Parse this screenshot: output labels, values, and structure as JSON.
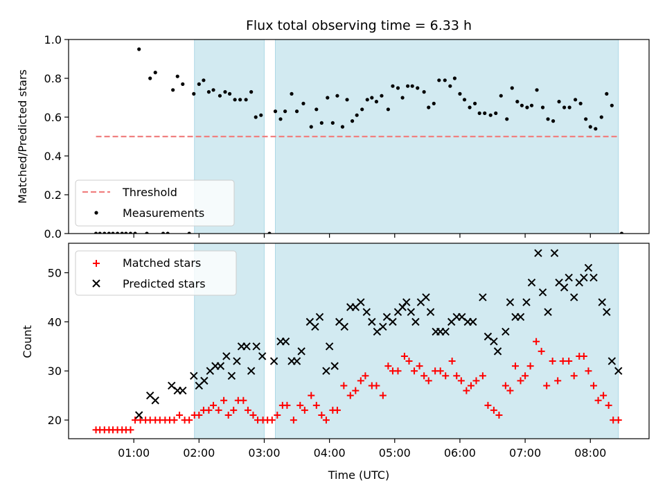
{
  "chart_data": {
    "title": "Flux total observing time = 6.33 h",
    "colors": {
      "band": "#add8e6",
      "threshold": "#f08080",
      "measurements": "#000000",
      "matched": "#ff0000",
      "predicted": "#000000"
    },
    "x_axis": {
      "label": "Time (UTC)",
      "unit": "hours UTC",
      "range": [
        0.0,
        8.9
      ],
      "ticks": [
        1,
        2,
        3,
        4,
        5,
        6,
        7,
        8
      ],
      "tick_labels": [
        "01:00",
        "02:00",
        "03:00",
        "04:00",
        "05:00",
        "06:00",
        "07:00",
        "08:00"
      ]
    },
    "observing_windows": [
      [
        1.93,
        3.0
      ],
      [
        3.17,
        8.43
      ]
    ],
    "top": {
      "type": "scatter",
      "ylabel": "Matched/Predicted stars",
      "ylim": [
        0.0,
        1.0
      ],
      "yticks": [
        0.0,
        0.2,
        0.4,
        0.6,
        0.8,
        1.0
      ],
      "ytick_labels": [
        "0.0",
        "0.2",
        "0.4",
        "0.6",
        "0.8",
        "1.0"
      ],
      "legend": {
        "position": "lower-left",
        "threshold_label": "Threshold",
        "measurements_label": "Measurements"
      },
      "threshold": {
        "value": 0.5,
        "x_range": [
          0.42,
          8.43
        ]
      },
      "measurements": [
        [
          0.42,
          0.0
        ],
        [
          0.48,
          0.0
        ],
        [
          0.55,
          0.0
        ],
        [
          0.62,
          0.0
        ],
        [
          0.68,
          0.0
        ],
        [
          0.75,
          0.0
        ],
        [
          0.82,
          0.0
        ],
        [
          0.88,
          0.0
        ],
        [
          0.95,
          0.0
        ],
        [
          1.02,
          0.0
        ],
        [
          1.08,
          0.95
        ],
        [
          1.2,
          0.0
        ],
        [
          1.25,
          0.8
        ],
        [
          1.33,
          0.83
        ],
        [
          1.45,
          0.0
        ],
        [
          1.52,
          0.0
        ],
        [
          1.6,
          0.74
        ],
        [
          1.67,
          0.81
        ],
        [
          1.75,
          0.77
        ],
        [
          1.85,
          0.0
        ],
        [
          1.92,
          0.72
        ],
        [
          2.0,
          0.77
        ],
        [
          2.07,
          0.79
        ],
        [
          2.15,
          0.73
        ],
        [
          2.22,
          0.74
        ],
        [
          2.32,
          0.71
        ],
        [
          2.4,
          0.73
        ],
        [
          2.47,
          0.72
        ],
        [
          2.55,
          0.69
        ],
        [
          2.63,
          0.69
        ],
        [
          2.72,
          0.69
        ],
        [
          2.8,
          0.73
        ],
        [
          2.87,
          0.6
        ],
        [
          2.95,
          0.61
        ],
        [
          3.08,
          0.0
        ],
        [
          3.17,
          0.63
        ],
        [
          3.25,
          0.59
        ],
        [
          3.32,
          0.63
        ],
        [
          3.42,
          0.72
        ],
        [
          3.5,
          0.63
        ],
        [
          3.6,
          0.67
        ],
        [
          3.72,
          0.55
        ],
        [
          3.8,
          0.64
        ],
        [
          3.88,
          0.57
        ],
        [
          3.97,
          0.7
        ],
        [
          4.05,
          0.57
        ],
        [
          4.12,
          0.71
        ],
        [
          4.2,
          0.55
        ],
        [
          4.27,
          0.69
        ],
        [
          4.35,
          0.58
        ],
        [
          4.42,
          0.61
        ],
        [
          4.5,
          0.64
        ],
        [
          4.58,
          0.69
        ],
        [
          4.65,
          0.7
        ],
        [
          4.72,
          0.68
        ],
        [
          4.8,
          0.71
        ],
        [
          4.9,
          0.64
        ],
        [
          4.97,
          0.76
        ],
        [
          5.05,
          0.75
        ],
        [
          5.12,
          0.7
        ],
        [
          5.2,
          0.76
        ],
        [
          5.27,
          0.76
        ],
        [
          5.35,
          0.75
        ],
        [
          5.45,
          0.73
        ],
        [
          5.52,
          0.65
        ],
        [
          5.6,
          0.67
        ],
        [
          5.68,
          0.79
        ],
        [
          5.77,
          0.79
        ],
        [
          5.85,
          0.76
        ],
        [
          5.92,
          0.8
        ],
        [
          6.0,
          0.72
        ],
        [
          6.07,
          0.69
        ],
        [
          6.15,
          0.65
        ],
        [
          6.23,
          0.67
        ],
        [
          6.3,
          0.62
        ],
        [
          6.38,
          0.62
        ],
        [
          6.47,
          0.61
        ],
        [
          6.55,
          0.62
        ],
        [
          6.63,
          0.71
        ],
        [
          6.72,
          0.59
        ],
        [
          6.8,
          0.75
        ],
        [
          6.88,
          0.68
        ],
        [
          6.95,
          0.66
        ],
        [
          7.03,
          0.65
        ],
        [
          7.1,
          0.66
        ],
        [
          7.18,
          0.74
        ],
        [
          7.27,
          0.65
        ],
        [
          7.35,
          0.59
        ],
        [
          7.43,
          0.58
        ],
        [
          7.52,
          0.68
        ],
        [
          7.6,
          0.65
        ],
        [
          7.68,
          0.65
        ],
        [
          7.77,
          0.69
        ],
        [
          7.85,
          0.67
        ],
        [
          7.93,
          0.59
        ],
        [
          8.0,
          0.55
        ],
        [
          8.08,
          0.54
        ],
        [
          8.17,
          0.6
        ],
        [
          8.25,
          0.72
        ],
        [
          8.33,
          0.66
        ],
        [
          8.48,
          0.0
        ]
      ]
    },
    "bottom": {
      "type": "scatter",
      "ylabel": "Count",
      "ylim": [
        16.2,
        56.0
      ],
      "yticks": [
        20,
        30,
        40,
        50
      ],
      "ytick_labels": [
        "20",
        "30",
        "40",
        "50"
      ],
      "legend": {
        "position": "upper-left",
        "matched_label": "Matched stars",
        "predicted_label": "Predicted stars"
      },
      "matched": [
        [
          0.42,
          18
        ],
        [
          0.48,
          18
        ],
        [
          0.55,
          18
        ],
        [
          0.62,
          18
        ],
        [
          0.68,
          18
        ],
        [
          0.75,
          18
        ],
        [
          0.82,
          18
        ],
        [
          0.88,
          18
        ],
        [
          0.95,
          18
        ],
        [
          1.02,
          20
        ],
        [
          1.1,
          20
        ],
        [
          1.18,
          20
        ],
        [
          1.25,
          20
        ],
        [
          1.33,
          20
        ],
        [
          1.4,
          20
        ],
        [
          1.48,
          20
        ],
        [
          1.55,
          20
        ],
        [
          1.62,
          20
        ],
        [
          1.7,
          21
        ],
        [
          1.78,
          20
        ],
        [
          1.85,
          20
        ],
        [
          1.93,
          21
        ],
        [
          2.0,
          21
        ],
        [
          2.07,
          22
        ],
        [
          2.15,
          22
        ],
        [
          2.22,
          23
        ],
        [
          2.3,
          22
        ],
        [
          2.38,
          24
        ],
        [
          2.45,
          21
        ],
        [
          2.53,
          22
        ],
        [
          2.6,
          24
        ],
        [
          2.68,
          24
        ],
        [
          2.75,
          22
        ],
        [
          2.83,
          21
        ],
        [
          2.9,
          20
        ],
        [
          2.98,
          20
        ],
        [
          3.05,
          20
        ],
        [
          3.12,
          20
        ],
        [
          3.2,
          21
        ],
        [
          3.28,
          23
        ],
        [
          3.35,
          23
        ],
        [
          3.45,
          20
        ],
        [
          3.55,
          23
        ],
        [
          3.62,
          22
        ],
        [
          3.72,
          25
        ],
        [
          3.8,
          23
        ],
        [
          3.88,
          21
        ],
        [
          3.95,
          20
        ],
        [
          4.05,
          22
        ],
        [
          4.12,
          22
        ],
        [
          4.22,
          27
        ],
        [
          4.32,
          25
        ],
        [
          4.4,
          26
        ],
        [
          4.48,
          28
        ],
        [
          4.55,
          29
        ],
        [
          4.65,
          27
        ],
        [
          4.72,
          27
        ],
        [
          4.82,
          25
        ],
        [
          4.9,
          31
        ],
        [
          4.97,
          30
        ],
        [
          5.05,
          30
        ],
        [
          5.15,
          33
        ],
        [
          5.22,
          32
        ],
        [
          5.3,
          30
        ],
        [
          5.38,
          31
        ],
        [
          5.45,
          29
        ],
        [
          5.52,
          28
        ],
        [
          5.62,
          30
        ],
        [
          5.7,
          30
        ],
        [
          5.78,
          29
        ],
        [
          5.88,
          32
        ],
        [
          5.95,
          29
        ],
        [
          6.02,
          28
        ],
        [
          6.1,
          26
        ],
        [
          6.17,
          27
        ],
        [
          6.25,
          28
        ],
        [
          6.35,
          29
        ],
        [
          6.43,
          23
        ],
        [
          6.52,
          22
        ],
        [
          6.6,
          21
        ],
        [
          6.7,
          27
        ],
        [
          6.77,
          26
        ],
        [
          6.85,
          31
        ],
        [
          6.93,
          28
        ],
        [
          7.0,
          29
        ],
        [
          7.08,
          31
        ],
        [
          7.17,
          36
        ],
        [
          7.25,
          34
        ],
        [
          7.33,
          27
        ],
        [
          7.42,
          32
        ],
        [
          7.5,
          28
        ],
        [
          7.58,
          32
        ],
        [
          7.67,
          32
        ],
        [
          7.75,
          29
        ],
        [
          7.83,
          33
        ],
        [
          7.9,
          33
        ],
        [
          7.97,
          30
        ],
        [
          8.05,
          27
        ],
        [
          8.12,
          24
        ],
        [
          8.2,
          25
        ],
        [
          8.28,
          23
        ],
        [
          8.35,
          20
        ],
        [
          8.43,
          20
        ]
      ],
      "predicted": [
        [
          1.08,
          21
        ],
        [
          1.25,
          25
        ],
        [
          1.33,
          24
        ],
        [
          1.58,
          27
        ],
        [
          1.67,
          26
        ],
        [
          1.75,
          26
        ],
        [
          1.92,
          29
        ],
        [
          2.0,
          27
        ],
        [
          2.08,
          28
        ],
        [
          2.17,
          30
        ],
        [
          2.25,
          31
        ],
        [
          2.33,
          31
        ],
        [
          2.42,
          33
        ],
        [
          2.5,
          29
        ],
        [
          2.58,
          32
        ],
        [
          2.65,
          35
        ],
        [
          2.73,
          35
        ],
        [
          2.8,
          30
        ],
        [
          2.88,
          35
        ],
        [
          2.97,
          33
        ],
        [
          3.15,
          32
        ],
        [
          3.25,
          36
        ],
        [
          3.33,
          36
        ],
        [
          3.42,
          32
        ],
        [
          3.5,
          32
        ],
        [
          3.57,
          34
        ],
        [
          3.7,
          40
        ],
        [
          3.78,
          39
        ],
        [
          3.85,
          41
        ],
        [
          3.95,
          30
        ],
        [
          4.0,
          35
        ],
        [
          4.08,
          31
        ],
        [
          4.15,
          40
        ],
        [
          4.23,
          39
        ],
        [
          4.32,
          43
        ],
        [
          4.4,
          43
        ],
        [
          4.48,
          44
        ],
        [
          4.57,
          42
        ],
        [
          4.65,
          40
        ],
        [
          4.73,
          38
        ],
        [
          4.82,
          39
        ],
        [
          4.88,
          41
        ],
        [
          4.97,
          40
        ],
        [
          5.05,
          42
        ],
        [
          5.12,
          43
        ],
        [
          5.18,
          44
        ],
        [
          5.25,
          42
        ],
        [
          5.32,
          40
        ],
        [
          5.4,
          44
        ],
        [
          5.48,
          45
        ],
        [
          5.55,
          42
        ],
        [
          5.63,
          38
        ],
        [
          5.7,
          38
        ],
        [
          5.78,
          38
        ],
        [
          5.87,
          40
        ],
        [
          5.95,
          41
        ],
        [
          6.03,
          41
        ],
        [
          6.12,
          40
        ],
        [
          6.2,
          40
        ],
        [
          6.35,
          45
        ],
        [
          6.43,
          37
        ],
        [
          6.52,
          36
        ],
        [
          6.58,
          34
        ],
        [
          6.7,
          38
        ],
        [
          6.77,
          44
        ],
        [
          6.85,
          41
        ],
        [
          6.93,
          41
        ],
        [
          7.02,
          44
        ],
        [
          7.1,
          48
        ],
        [
          7.2,
          54
        ],
        [
          7.27,
          46
        ],
        [
          7.35,
          42
        ],
        [
          7.45,
          54
        ],
        [
          7.52,
          48
        ],
        [
          7.6,
          47
        ],
        [
          7.67,
          49
        ],
        [
          7.75,
          45
        ],
        [
          7.83,
          48
        ],
        [
          7.9,
          49
        ],
        [
          7.97,
          51
        ],
        [
          8.05,
          49
        ],
        [
          8.18,
          44
        ],
        [
          8.25,
          42
        ],
        [
          8.33,
          32
        ],
        [
          8.43,
          30
        ]
      ]
    }
  }
}
